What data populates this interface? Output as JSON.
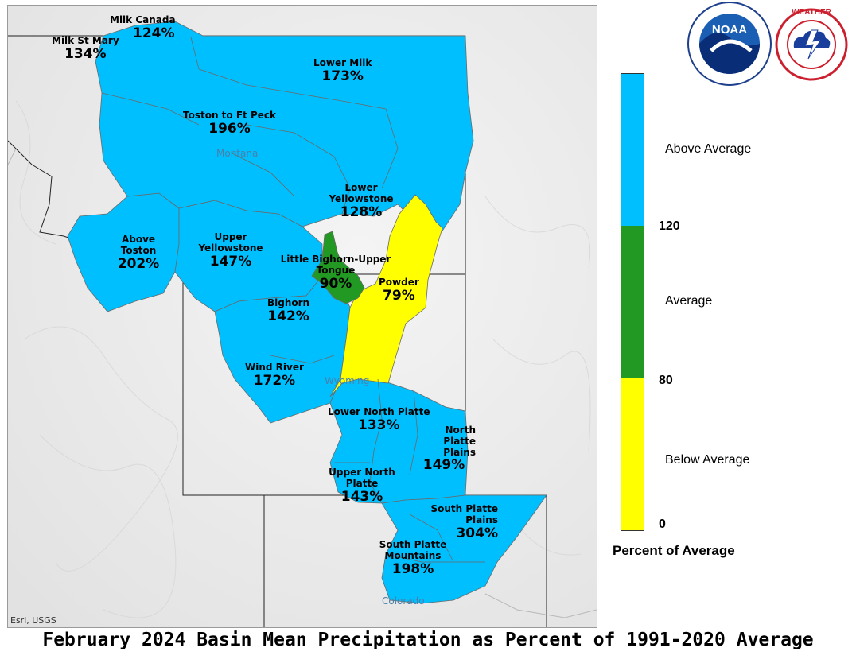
{
  "title": "February 2024 Basin Mean Precipitation as Percent of 1991-2020 Average",
  "attribution": "Esri, USGS",
  "colors": {
    "above": "#00bfff",
    "average": "#229922",
    "below": "#ffff00",
    "background": "#ececec"
  },
  "states": {
    "montana": "Montana",
    "wyoming": "Wyoming",
    "colorado": "Colorado"
  },
  "basins": [
    {
      "name": "Milk Canada",
      "percent": "124%",
      "category": "above"
    },
    {
      "name": "Milk St Mary",
      "percent": "134%",
      "category": "above"
    },
    {
      "name": "Lower Milk",
      "percent": "173%",
      "category": "above"
    },
    {
      "name": "Toston to Ft Peck",
      "percent": "196%",
      "category": "above"
    },
    {
      "name": "Lower Yellowstone",
      "percent": "128%",
      "category": "above"
    },
    {
      "name": "Above Toston",
      "percent": "202%",
      "category": "above"
    },
    {
      "name": "Upper Yellowstone",
      "percent": "147%",
      "category": "above"
    },
    {
      "name": "Little Bighorn-Upper Tongue",
      "percent": "90%",
      "category": "average"
    },
    {
      "name": "Powder",
      "percent": "79%",
      "category": "below"
    },
    {
      "name": "Bighorn",
      "percent": "142%",
      "category": "above"
    },
    {
      "name": "Wind River",
      "percent": "172%",
      "category": "above"
    },
    {
      "name": "Lower North Platte",
      "percent": "133%",
      "category": "above"
    },
    {
      "name": "North Platte Plains",
      "percent": "149%",
      "category": "above"
    },
    {
      "name": "Upper North Platte",
      "percent": "143%",
      "category": "above"
    },
    {
      "name": "South Platte Plains",
      "percent": "304%",
      "category": "above"
    },
    {
      "name": "South Platte Mountains",
      "percent": "198%",
      "category": "above"
    }
  ],
  "legend": {
    "title": "Percent of Average",
    "categories": [
      {
        "label": "Above Average",
        "color": "#00bfff"
      },
      {
        "label": "Average",
        "color": "#229922"
      },
      {
        "label": "Below Average",
        "color": "#ffff00"
      }
    ],
    "breaks": [
      "120",
      "80",
      "0"
    ]
  },
  "logos": {
    "noaa": {
      "text": "NOAA",
      "ring_text": "NATIONAL OCEANIC AND ATMOSPHERIC ADMINISTRATION",
      "bottom_text": "U.S. DEPARTMENT OF COMMERCE"
    },
    "nws": {
      "ring_text": "NATIONAL WEATHER SERVICE"
    }
  }
}
